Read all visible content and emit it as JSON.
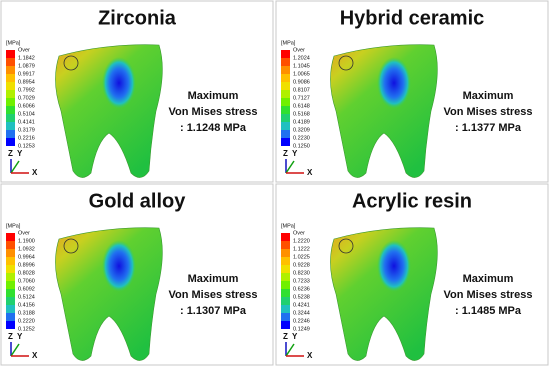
{
  "panels": [
    {
      "title": "Zirconia",
      "unit": "[MPa]",
      "legend": [
        "Over",
        "1.1842",
        "1.0879",
        "0.9917",
        "0.8954",
        "0.7992",
        "0.7029",
        "0.6066",
        "0.5104",
        "0.4141",
        "0.3179",
        "0.2216",
        "0.1253"
      ],
      "lines": [
        "Maximum",
        "Von Mises stress",
        ": 1.1248 MPa"
      ],
      "axes": [
        "Z",
        "Y",
        "X"
      ]
    },
    {
      "title": "Hybrid ceramic",
      "unit": "[MPa]",
      "legend": [
        "Over",
        "1.2024",
        "1.1045",
        "1.0065",
        "0.9086",
        "0.8107",
        "0.7127",
        "0.6148",
        "0.5168",
        "0.4189",
        "0.3209",
        "0.2230",
        "0.1250"
      ],
      "lines": [
        "Maximum",
        "Von Mises stress",
        ": 1.1377 MPa"
      ],
      "axes": [
        "Z",
        "Y",
        "X"
      ]
    },
    {
      "title": "Gold alloy",
      "unit": "[MPa]",
      "legend": [
        "Over",
        "1.1900",
        "1.0932",
        "0.9964",
        "0.8996",
        "0.8028",
        "0.7060",
        "0.6092",
        "0.5124",
        "0.4156",
        "0.3188",
        "0.2220",
        "0.1252"
      ],
      "lines": [
        "Maximum",
        "Von Mises stress",
        ": 1.1307 MPa"
      ],
      "axes": [
        "Z",
        "Y",
        "X"
      ]
    },
    {
      "title": "Acrylic resin",
      "unit": "[MPa]",
      "legend": [
        "Over",
        "1.2220",
        "1.1222",
        "1.0225",
        "0.9228",
        "0.8230",
        "0.7233",
        "0.6236",
        "0.5238",
        "0.4241",
        "0.3244",
        "0.2246",
        "0.1249"
      ],
      "lines": [
        "Maximum",
        "Von Mises stress",
        ": 1.1485 MPa"
      ],
      "axes": [
        "Z",
        "Y",
        "X"
      ]
    }
  ]
}
